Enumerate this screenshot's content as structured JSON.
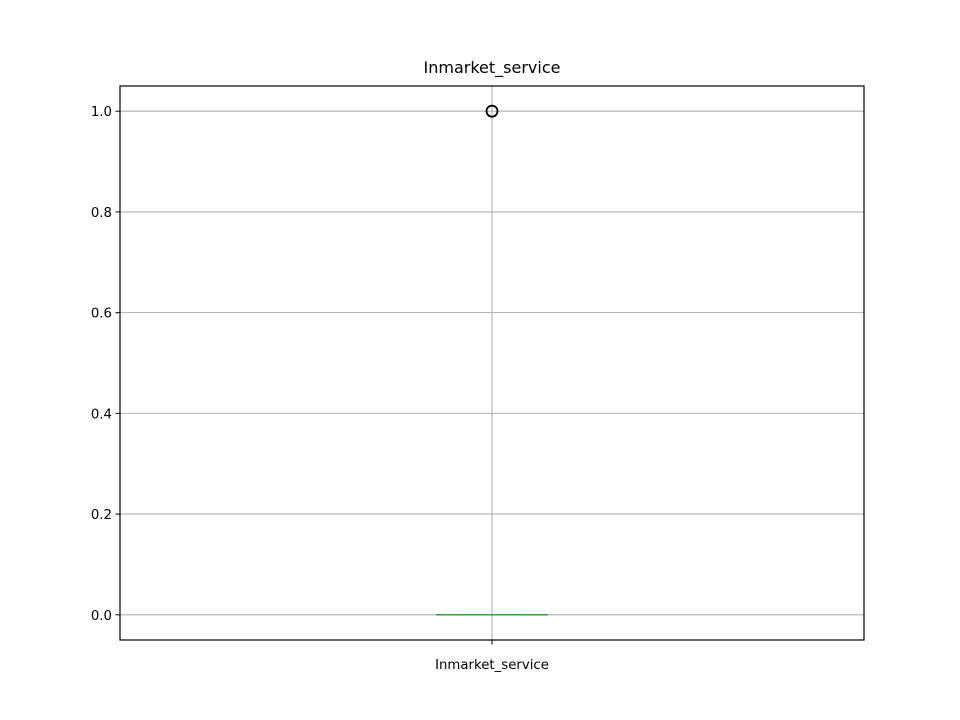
{
  "chart_data": {
    "type": "box",
    "title": "Inmarket_service",
    "xlabel": "",
    "ylabel": "",
    "categories": [
      "Inmarket_service"
    ],
    "ylim": [
      -0.05,
      1.05
    ],
    "yticks": [
      0.0,
      0.2,
      0.4,
      0.6,
      0.8,
      1.0
    ],
    "ytick_labels": [
      "0.0",
      "0.2",
      "0.4",
      "0.6",
      "0.8",
      "1.0"
    ],
    "grid": true,
    "boxes": [
      {
        "category": "Inmarket_service",
        "min": 0.0,
        "q1": 0.0,
        "median": 0.0,
        "q3": 0.0,
        "max": 0.0,
        "outliers": [
          1.0
        ]
      }
    ],
    "colors": {
      "median": "#2ca02c",
      "box": "#1f77b4",
      "outlier": "#000000",
      "grid": "#b0b0b0",
      "axes": "#000000"
    }
  }
}
